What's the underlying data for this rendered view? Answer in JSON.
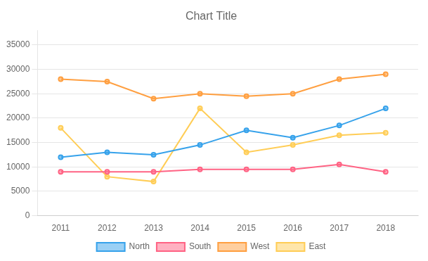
{
  "chart_data": {
    "type": "line",
    "title": "Chart Title",
    "x": [
      2011,
      2012,
      2013,
      2014,
      2015,
      2016,
      2017,
      2018
    ],
    "series": [
      {
        "name": "North",
        "values": [
          12000,
          13000,
          12500,
          14500,
          17500,
          16000,
          18500,
          22000
        ],
        "marker": "circle"
      },
      {
        "name": "South",
        "values": [
          9000,
          9000,
          9000,
          9500,
          9500,
          9500,
          10500,
          9000
        ],
        "marker": "circle"
      },
      {
        "name": "West",
        "values": [
          28000,
          27500,
          24000,
          25000,
          24500,
          25000,
          28000,
          29000
        ],
        "marker": "circle"
      },
      {
        "name": "East",
        "values": [
          18000,
          8000,
          7000,
          22000,
          13000,
          14500,
          16500,
          17000
        ],
        "marker": "circle"
      }
    ],
    "xlim": [
      2010.5,
      2018.7
    ],
    "xticks": [
      2011,
      2012,
      2013,
      2014,
      2015,
      2016,
      2017,
      2018
    ],
    "ylim": [
      0,
      38000
    ],
    "yticks": [
      0,
      5000,
      10000,
      15000,
      20000,
      25000,
      30000,
      35000
    ],
    "grid": "y",
    "legend": "bottom"
  }
}
